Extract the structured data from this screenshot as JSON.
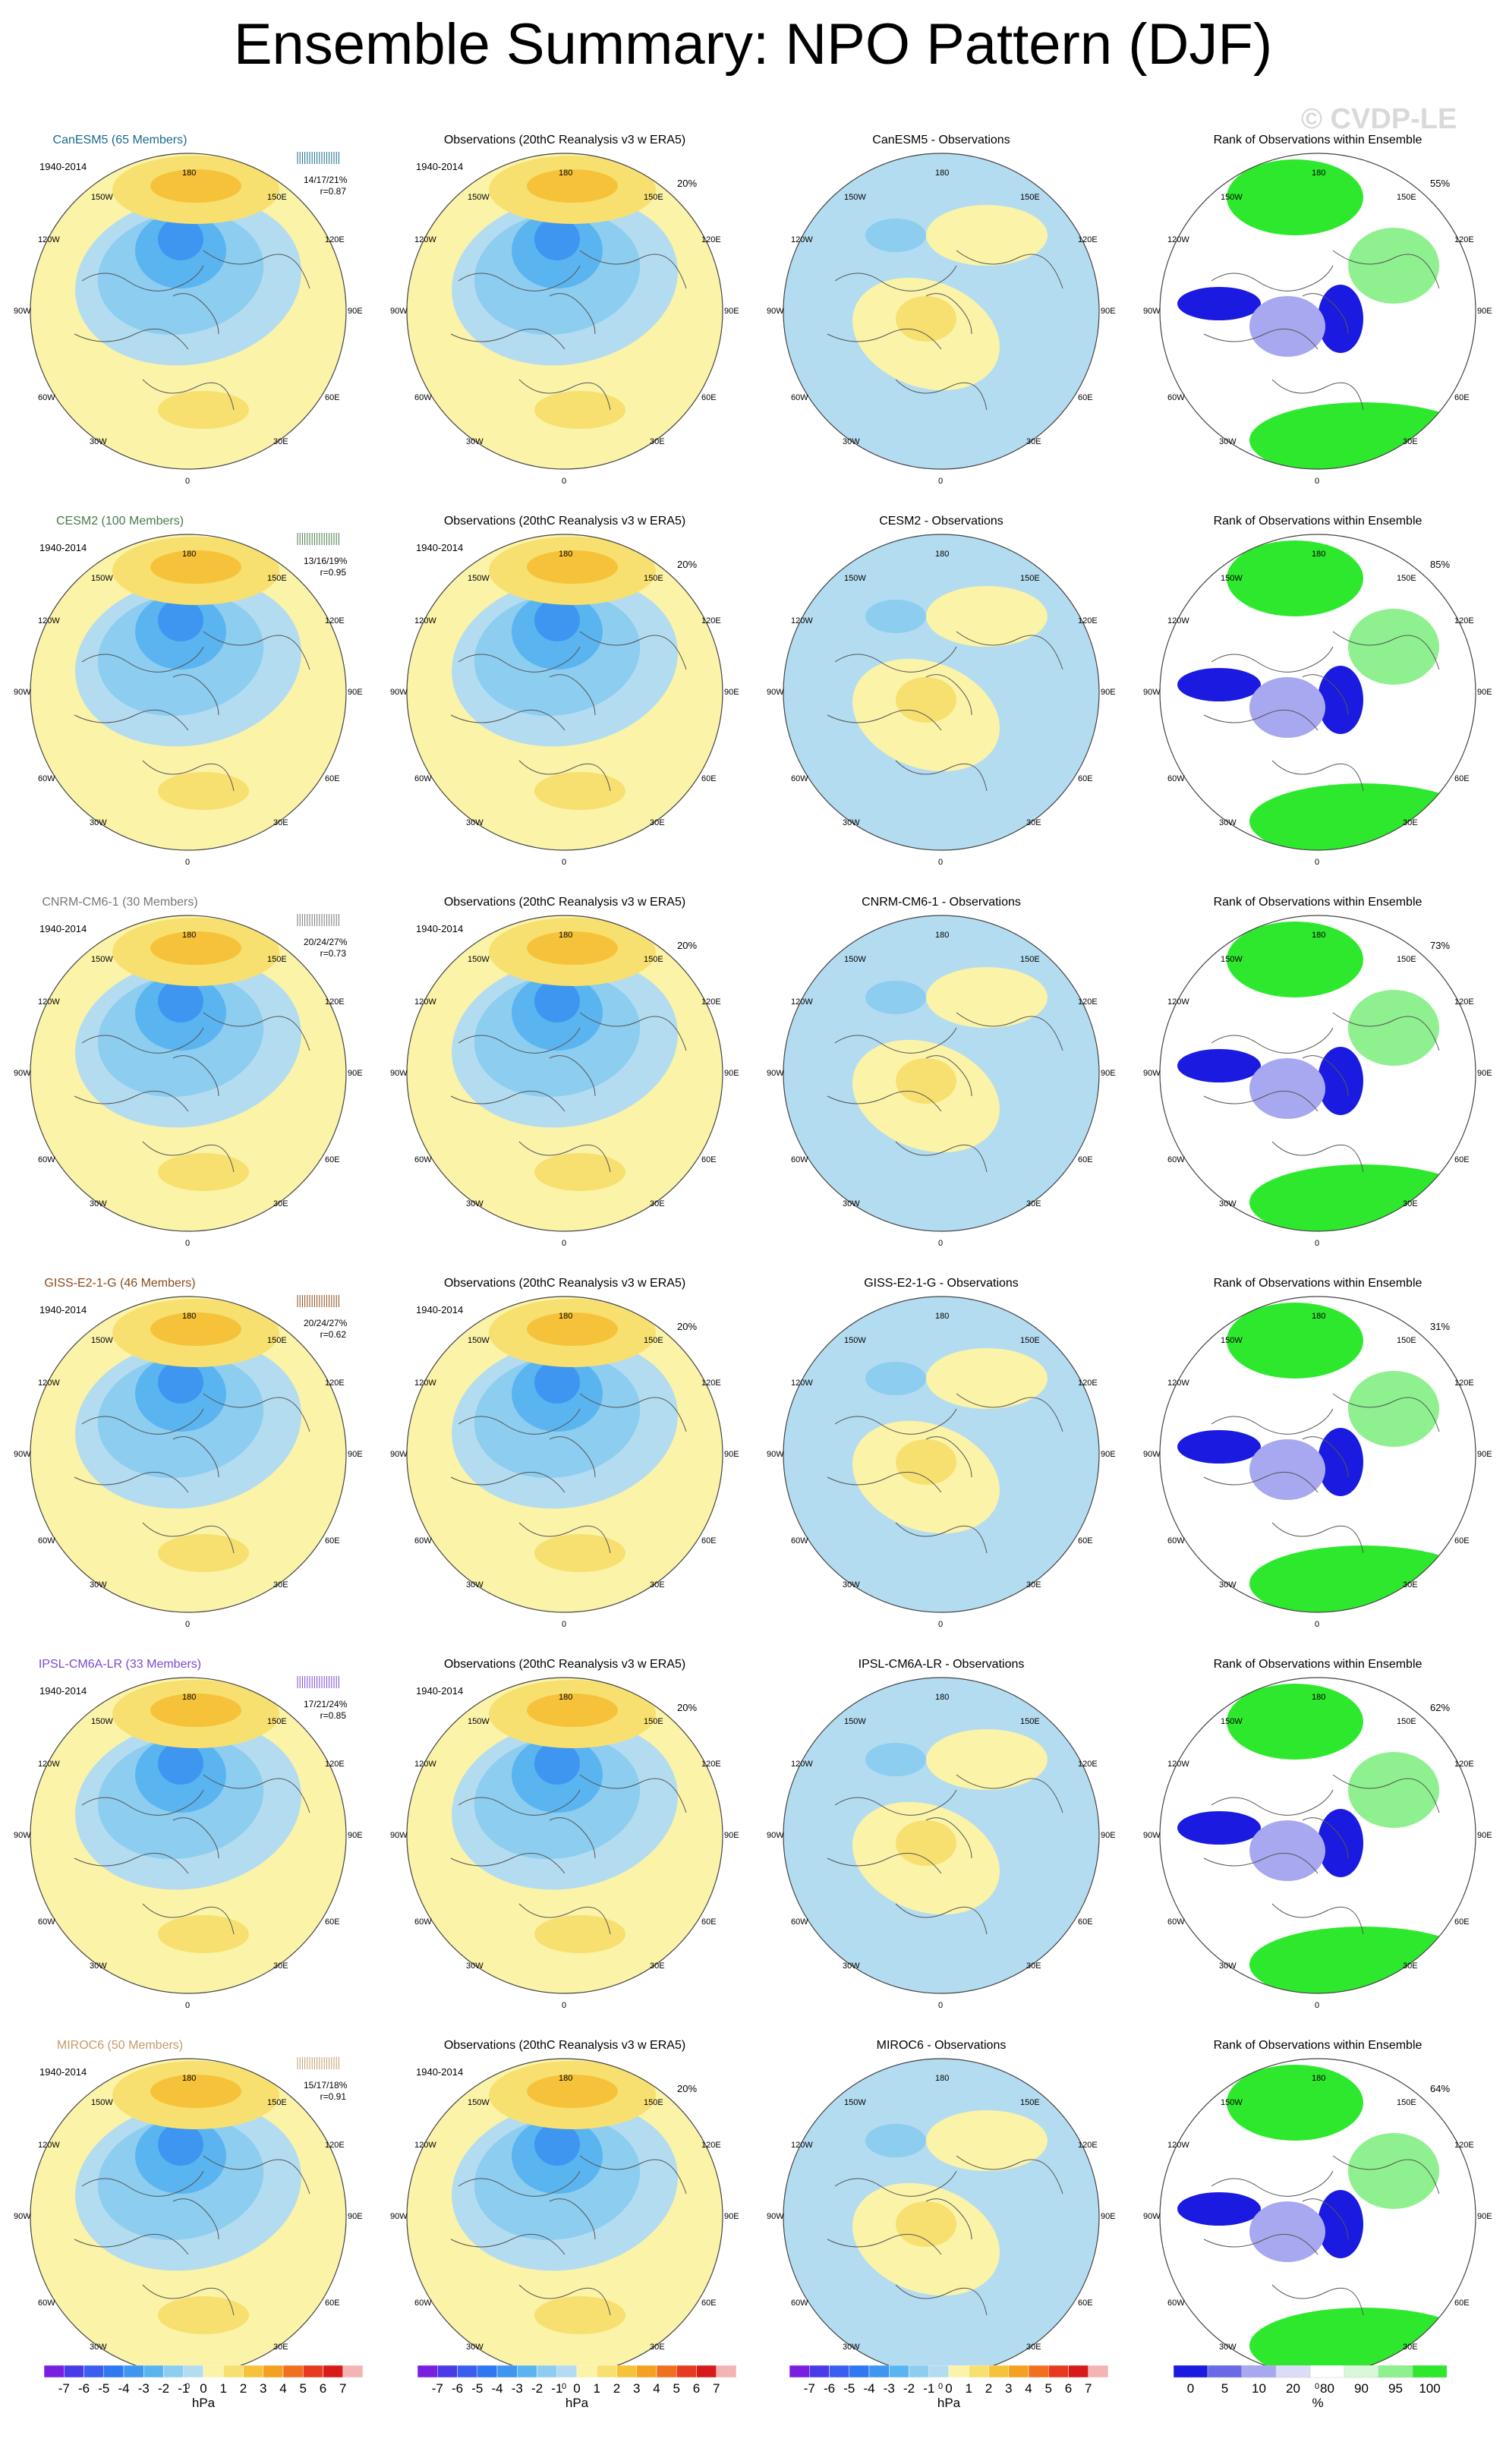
{
  "title": "Ensemble Summary: NPO Pattern (DJF)",
  "watermark": "© CVDP-LE",
  "period": "1940-2014",
  "obs_title": "Observations (20thC Reanalysis v3 w ERA5)",
  "obs_pct": "20%",
  "rank_title": "Rank of Observations within Ensemble",
  "lon_labels": {
    "top": "180",
    "bottom": "0",
    "left": "90W",
    "right": "90E",
    "ul1": "150W",
    "ul2": "120W",
    "ll1": "60W",
    "ll2": "30W",
    "ur1": "150E",
    "ur2": "120E",
    "lr1": "60E",
    "lr2": "30E"
  },
  "rows": [
    {
      "model": "CanESM5 (65 Members)",
      "color": "#1a6b8a",
      "stats1": "14/17/21%",
      "stats2": "r=0.87",
      "diff_title": "CanESM5 - Observations",
      "rank_pct": "55%"
    },
    {
      "model": "CESM2 (100 Members)",
      "color": "#4a7a4a",
      "stats1": "13/16/19%",
      "stats2": "r=0.95",
      "diff_title": "CESM2 - Observations",
      "rank_pct": "85%"
    },
    {
      "model": "CNRM-CM6-1 (30 Members)",
      "color": "#777777",
      "stats1": "20/24/27%",
      "stats2": "r=0.73",
      "diff_title": "CNRM-CM6-1 - Observations",
      "rank_pct": "73%"
    },
    {
      "model": "GISS-E2-1-G (46 Members)",
      "color": "#8a4a1a",
      "stats1": "20/24/27%",
      "stats2": "r=0.62",
      "diff_title": "GISS-E2-1-G - Observations",
      "rank_pct": "31%"
    },
    {
      "model": "IPSL-CM6A-LR (33 Members)",
      "color": "#7a4ad0",
      "stats1": "17/21/24%",
      "stats2": "r=0.85",
      "diff_title": "IPSL-CM6A-LR - Observations",
      "rank_pct": "62%"
    },
    {
      "model": "MIROC6 (50 Members)",
      "color": "#c49a6a",
      "stats1": "15/17/18%",
      "stats2": "r=0.91",
      "diff_title": "MIROC6 - Observations",
      "rank_pct": "64%"
    }
  ],
  "chart_data": {
    "type": "heatmap",
    "projection": "north polar stereographic",
    "units": "hPa",
    "colorbar_hpa": {
      "labels": [
        "-7",
        "-6",
        "-5",
        "-4",
        "-3",
        "-2",
        "-1",
        "0",
        "1",
        "2",
        "3",
        "4",
        "5",
        "6",
        "7"
      ],
      "unit": "hPa",
      "colors": [
        "#7a1fe0",
        "#4a3be8",
        "#3a5ef0",
        "#2f78f2",
        "#3f96f0",
        "#5ab4f0",
        "#8ccdf0",
        "#b4dcf0",
        "#fbf3a8",
        "#f7e070",
        "#f5c23a",
        "#f4a020",
        "#f07020",
        "#e83a20",
        "#d81a1a",
        "#f4b4b4"
      ]
    },
    "colorbar_rank": {
      "labels": [
        "0",
        "5",
        "10",
        "20",
        "80",
        "90",
        "95",
        "100"
      ],
      "unit": "%",
      "colors": [
        "#1a1ae0",
        "#6a6ae8",
        "#a8a8f0",
        "#dcdcf8",
        "#ffffff",
        "#d8f8d8",
        "#8ef08e",
        "#2ee82e"
      ]
    }
  }
}
